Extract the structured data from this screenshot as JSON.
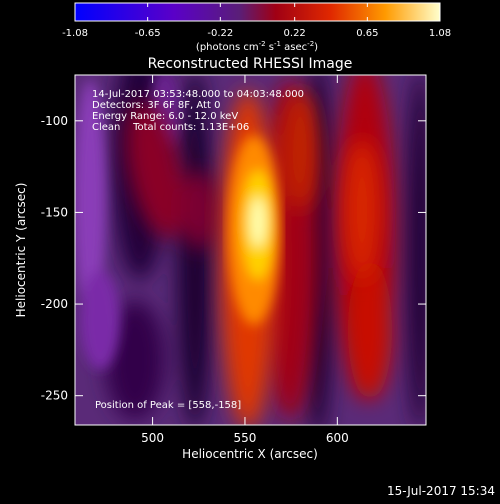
{
  "colorbar": {
    "ticks": [
      "-1.08",
      "-0.65",
      "-0.22",
      "0.22",
      "0.65",
      "1.08"
    ],
    "tick_values": [
      -1.08,
      -0.65,
      -0.22,
      0.22,
      0.65,
      1.08
    ],
    "min": -1.08,
    "max": 1.08,
    "units_main": "(photons cm",
    "units_exp1": "-2",
    "units_mid": " s",
    "units_exp2": "-1",
    "units_end": " asec",
    "units_exp3": "-2",
    "units_close": ")"
  },
  "plot": {
    "title": "Reconstructed RHESSI Image",
    "xlabel": "Heliocentric X (arcsec)",
    "ylabel": "Heliocentric Y (arcsec)",
    "x_ticks": [
      "500",
      "550",
      "600"
    ],
    "x_tick_values": [
      500,
      550,
      600
    ],
    "y_ticks": [
      "-100",
      "-150",
      "-200",
      "-250"
    ],
    "y_tick_values": [
      -100,
      -150,
      -200,
      -250
    ],
    "xlim": [
      458,
      648
    ],
    "ylim": [
      -266,
      -75
    ]
  },
  "annotations": {
    "line1": "14-Jul-2017 03:53:48.000 to 04:03:48.000",
    "line2": "Detectors: 3F 6F 8F, Att 0",
    "line3": "Energy Range: 6.0 - 12.0 keV",
    "line4": "Clean    Total counts: 1.13E+06",
    "peak": "Position of Peak = [558,-158]"
  },
  "footer": {
    "timestamp": "15-Jul-2017 15:34"
  }
}
